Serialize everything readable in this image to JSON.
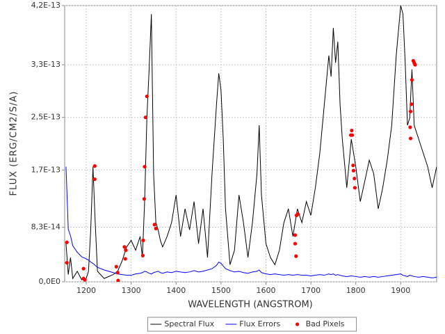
{
  "chart_data": {
    "type": "line",
    "xlabel": "WAVELENGTH (ANGSTROM)",
    "ylabel": "FLUX (ERG/CM2/S/A)",
    "xlim": [
      1152,
      1980
    ],
    "ylim": [
      0,
      4.2e-13
    ],
    "xticks": [
      1200,
      1300,
      1400,
      1500,
      1600,
      1700,
      1800,
      1900
    ],
    "yticks": [
      {
        "value": 0,
        "label": "0,0E0"
      },
      {
        "value": 8.3e-14,
        "label": "8,3E-14"
      },
      {
        "value": 1.7e-13,
        "label": "1,7E-13"
      },
      {
        "value": 2.5e-13,
        "label": "2,5E-13"
      },
      {
        "value": 3.3e-13,
        "label": "3,3E-13"
      },
      {
        "value": 4.2e-13,
        "label": "4,2E-13"
      }
    ],
    "grid": true,
    "legend": "bottom",
    "x": [
      1155,
      1160,
      1165,
      1170,
      1180,
      1190,
      1200,
      1205,
      1210,
      1215,
      1220,
      1225,
      1240,
      1260,
      1270,
      1280,
      1290,
      1300,
      1310,
      1320,
      1325,
      1330,
      1335,
      1340,
      1345,
      1350,
      1355,
      1360,
      1365,
      1370,
      1380,
      1390,
      1400,
      1410,
      1420,
      1430,
      1440,
      1450,
      1460,
      1470,
      1480,
      1490,
      1495,
      1500,
      1505,
      1510,
      1520,
      1530,
      1540,
      1550,
      1560,
      1570,
      1580,
      1585,
      1590,
      1600,
      1610,
      1620,
      1630,
      1640,
      1650,
      1660,
      1670,
      1680,
      1690,
      1700,
      1710,
      1720,
      1730,
      1740,
      1745,
      1750,
      1755,
      1760,
      1765,
      1770,
      1780,
      1790,
      1800,
      1810,
      1820,
      1830,
      1840,
      1850,
      1860,
      1870,
      1880,
      1890,
      1900,
      1905,
      1910,
      1915,
      1920,
      1925,
      1930,
      1940,
      1950,
      1960,
      1970,
      1980
    ],
    "series": [
      {
        "name": "Spectral Flux",
        "type": "line",
        "color": "#000000",
        "values": [
          5.8e-14,
          1.1e-14,
          3.7e-14,
          5e-15,
          1.6e-14,
          3e-15,
          5e-15,
          1.6e-14,
          7.9e-14,
          1.75e-13,
          9e-14,
          1.6e-14,
          5e-15,
          1.1e-14,
          1.6e-14,
          3.2e-14,
          5.3e-14,
          6.3e-14,
          4.8e-14,
          6.9e-14,
          3.7e-14,
          1.22e-13,
          2.49e-13,
          3.23e-13,
          4.07e-13,
          1.64e-13,
          9e-14,
          7.9e-14,
          6.3e-14,
          5.3e-14,
          6.9e-14,
          9e-14,
          1.32e-13,
          6.9e-14,
          1.11e-13,
          7.9e-14,
          1.22e-13,
          5.8e-14,
          1.11e-13,
          3.7e-14,
          1.64e-13,
          2.7e-13,
          3.17e-13,
          2.91e-13,
          2.17e-13,
          1.11e-13,
          2.6e-14,
          4.8e-14,
          1.32e-13,
          9e-14,
          3.7e-14,
          9e-14,
          1.64e-13,
          2.38e-13,
          1.32e-13,
          5.8e-14,
          3.7e-14,
          2.6e-14,
          4.8e-14,
          9e-14,
          1.11e-13,
          6.9e-14,
          1.11e-13,
          9e-14,
          1.22e-13,
          1.01e-13,
          1.43e-13,
          1.96e-13,
          2.7e-13,
          3.44e-13,
          3.12e-13,
          3.86e-13,
          3.33e-13,
          3.65e-13,
          2.7e-13,
          2.17e-13,
          1.43e-13,
          2.17e-13,
          1.75e-13,
          1.22e-13,
          1.53e-13,
          1.85e-13,
          1.64e-13,
          1.11e-13,
          1.43e-13,
          1.85e-13,
          2.38e-13,
          3.44e-13,
          4.2e-13,
          4.07e-13,
          3.33e-13,
          2.38e-13,
          2.49e-13,
          3.23e-13,
          2.38e-13,
          2.17e-13,
          1.96e-13,
          1.75e-13,
          1.43e-13,
          1.75e-13
        ]
      },
      {
        "name": "Flux Errors",
        "type": "line",
        "color": "#0000ff",
        "values": [
          1.75e-13,
          8e-14,
          7e-14,
          5.5e-14,
          4.5e-14,
          3.8e-14,
          3.5e-14,
          3.3e-14,
          3e-14,
          2.8e-14,
          2.5e-14,
          2.2e-14,
          1.8e-14,
          1.4e-14,
          1.2e-14,
          1.1e-14,
          1e-14,
          1e-14,
          1.2e-14,
          1.3e-14,
          1.4e-14,
          1.6e-14,
          1.5e-14,
          1.3e-14,
          1.2e-14,
          1.4e-14,
          1.5e-14,
          1.6e-14,
          1.4e-14,
          1.3e-14,
          1.5e-14,
          1.4e-14,
          1.6e-14,
          1.5e-14,
          1.4e-14,
          1.5e-14,
          1.7e-14,
          1.5e-14,
          1.6e-14,
          1.8e-14,
          2e-14,
          2.5e-14,
          3e-14,
          2.8e-14,
          2.4e-14,
          2e-14,
          1.7e-14,
          1.5e-14,
          1.6e-14,
          1.4e-14,
          1.3e-14,
          1.5e-14,
          1.6e-14,
          1.8e-14,
          1.4e-14,
          1.2e-14,
          1.1e-14,
          1.2e-14,
          1.1e-14,
          1e-14,
          1.1e-14,
          1e-14,
          1.1e-14,
          1e-14,
          1e-14,
          9e-15,
          1e-14,
          1.1e-14,
          1e-14,
          1.2e-14,
          1.1e-14,
          1.2e-14,
          1e-14,
          1.1e-14,
          1e-14,
          9e-15,
          8e-15,
          9e-15,
          8e-15,
          7e-15,
          8e-15,
          7e-15,
          8e-15,
          7e-15,
          8e-15,
          9e-15,
          1e-14,
          1.1e-14,
          1.2e-14,
          1e-14,
          9e-15,
          8e-15,
          1e-14,
          9e-15,
          8e-15,
          7e-15,
          8e-15,
          7e-15,
          6e-15,
          7e-15
        ]
      },
      {
        "name": "Bad Pixels",
        "type": "scatter",
        "color": "#ff0000",
        "x": [
          1157,
          1157,
          1194,
          1194,
          1197,
          1219,
          1219,
          1267,
          1270,
          1271,
          1285,
          1288,
          1287,
          1326,
          1327,
          1329,
          1330,
          1332,
          1335,
          1352,
          1355,
          1665,
          1667,
          1665,
          1668,
          1671,
          1789,
          1791,
          1792,
          1794,
          1795,
          1797,
          1798,
          1921,
          1922,
          1922,
          1924,
          1925,
          1928,
          1930,
          1932
        ],
        "values": [
          6e-14,
          2.9e-14,
          2e-14,
          5e-15,
          3e-15,
          1.76e-13,
          1.56e-13,
          2.3e-14,
          1.4e-14,
          2e-15,
          5.3e-14,
          4.8e-14,
          3.5e-14,
          4e-14,
          6.3e-14,
          1.26e-13,
          1.75e-13,
          2.5e-13,
          2.82e-13,
          8.7e-14,
          8.1e-14,
          7.1e-14,
          3.9e-14,
          5.8e-14,
          1.01e-13,
          1.03e-13,
          2.23e-13,
          2.3e-13,
          2.23e-13,
          1.77e-13,
          1.69e-13,
          1.57e-13,
          1.43e-13,
          2.35e-13,
          2.18e-13,
          2.59e-13,
          2.7e-13,
          3.07e-13,
          3.36e-13,
          3.33e-13,
          3.3e-13
        ]
      }
    ]
  }
}
